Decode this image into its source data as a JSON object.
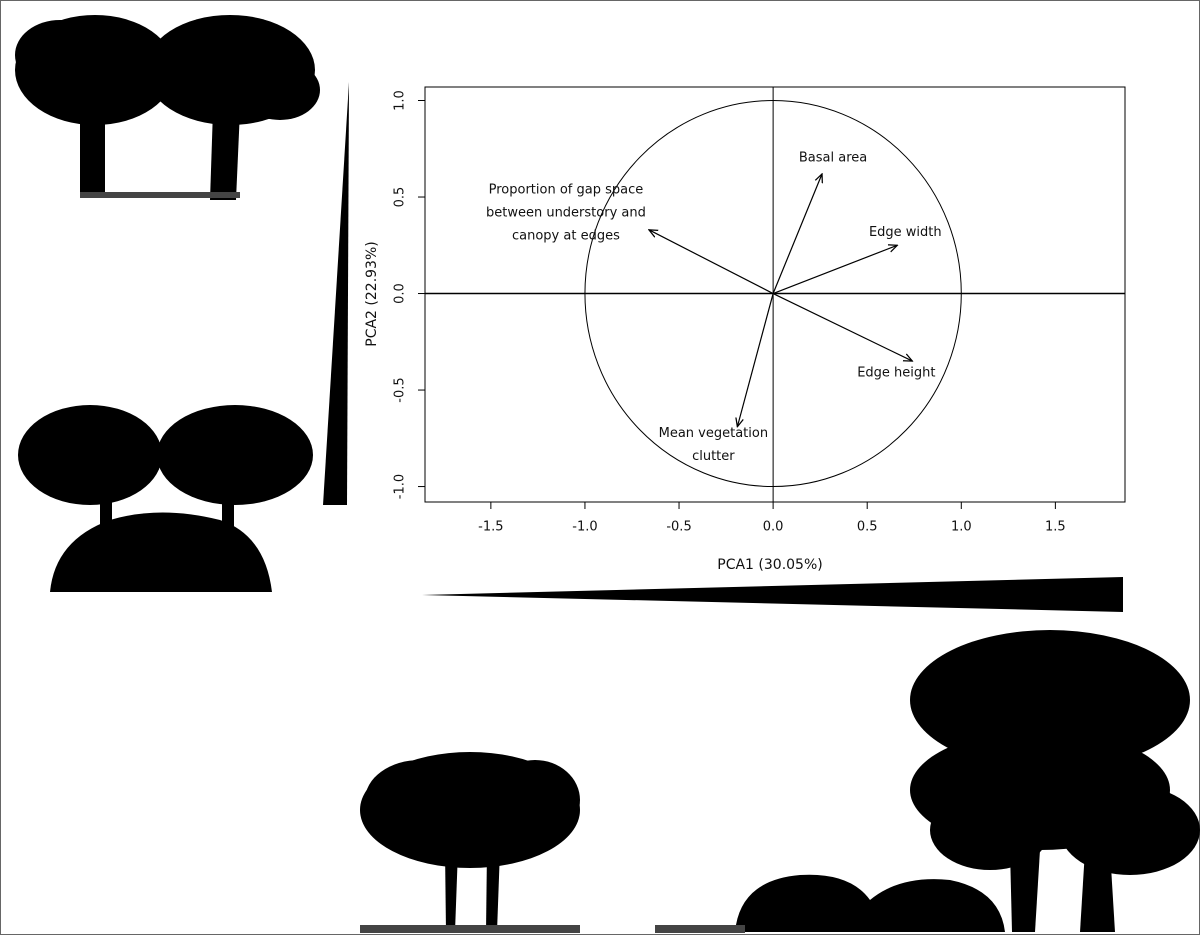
{
  "chart_data": {
    "type": "biplot",
    "xlabel": "PCA1 (30.05%)",
    "ylabel": "PCA2 (22.93%)",
    "xlim": [
      -1.85,
      1.87
    ],
    "ylim": [
      -1.08,
      1.07
    ],
    "xticks": [
      -1.5,
      {
        "value": -1,
        "label": "-1.0"
      },
      -0.5,
      {
        "value": 0,
        "label": "0.0"
      },
      0.5,
      {
        "value": 1,
        "label": "1.0"
      },
      1.5
    ],
    "yticks": [
      {
        "value": -1,
        "label": "-1.0"
      },
      -0.5,
      {
        "value": 0,
        "label": "0.0"
      },
      0.5,
      {
        "value": 1,
        "label": "1.0"
      }
    ],
    "vectors": [
      {
        "name": [
          "Basal area"
        ],
        "x": 0.26,
        "y": 0.62
      },
      {
        "name": [
          "Edge width"
        ],
        "x": 0.66,
        "y": 0.25
      },
      {
        "name": [
          "Edge height"
        ],
        "x": 0.74,
        "y": -0.35
      },
      {
        "name": [
          "Mean vegetation",
          "clutter"
        ],
        "x": -0.19,
        "y": -0.69
      },
      {
        "name": [
          "Proportion of gap space",
          "between understory and",
          "canopy at edges"
        ],
        "x": -0.66,
        "y": 0.33
      }
    ],
    "unit_circle": true,
    "zero_lines": true,
    "color": "#000000"
  }
}
